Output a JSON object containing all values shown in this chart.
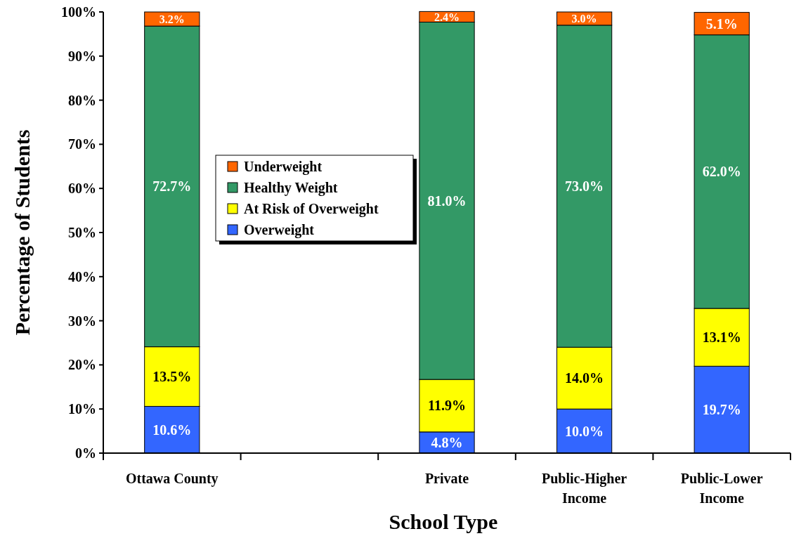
{
  "chart_data": {
    "type": "bar",
    "stacked": true,
    "xlabel": "School Type",
    "ylabel": "Percentage of Students",
    "categories": [
      "Ottawa County",
      null,
      "Private",
      "Public-Higher Income",
      "Public-Lower Income"
    ],
    "series": [
      {
        "name": "Overweight",
        "color": "#3366ff",
        "values": [
          10.6,
          null,
          4.8,
          10.0,
          19.7
        ],
        "value_labels": [
          "10.6%",
          null,
          "4.8%",
          "10.0%",
          "19.7%"
        ]
      },
      {
        "name": "At Risk of Overweight",
        "color": "#ffff00",
        "values": [
          13.5,
          null,
          11.9,
          14.0,
          13.1
        ],
        "value_labels": [
          "13.5%",
          null,
          "11.9%",
          "14.0%",
          "13.1%"
        ]
      },
      {
        "name": "Healthy Weight",
        "color": "#339966",
        "values": [
          72.7,
          null,
          81.0,
          73.0,
          62.0
        ],
        "value_labels": [
          "72.7%",
          null,
          "81.0%",
          "73.0%",
          "62.0%"
        ]
      },
      {
        "name": "Underweight",
        "color": "#ff6600",
        "values": [
          3.2,
          null,
          2.4,
          3.0,
          5.1
        ],
        "value_labels": [
          "3.2%",
          null,
          "2.4%",
          "3.0%",
          "5.1%"
        ]
      }
    ],
    "ylim": [
      0,
      100
    ],
    "yticks": [
      {
        "value": 0,
        "label": "0%"
      },
      {
        "value": 10,
        "label": "10%"
      },
      {
        "value": 20,
        "label": "20%"
      },
      {
        "value": 30,
        "label": "30%"
      },
      {
        "value": 40,
        "label": "40%"
      },
      {
        "value": 50,
        "label": "50%"
      },
      {
        "value": 60,
        "label": "60%"
      },
      {
        "value": 70,
        "label": "70%"
      },
      {
        "value": 80,
        "label": "80%"
      },
      {
        "value": 90,
        "label": "90%"
      },
      {
        "value": 100,
        "label": "100%"
      }
    ],
    "grid": false,
    "legend": "left"
  }
}
